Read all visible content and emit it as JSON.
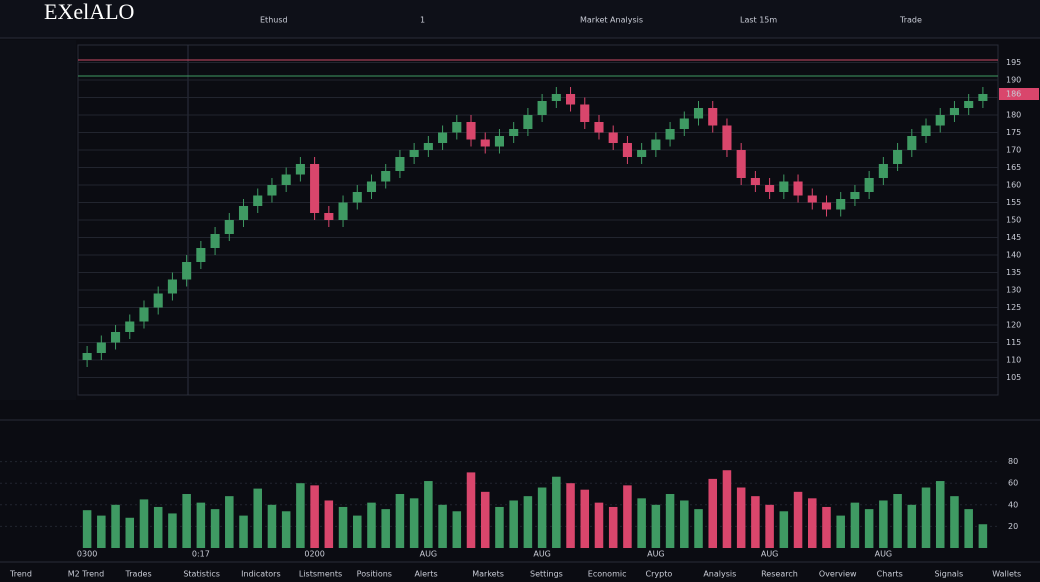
{
  "chart_data": {
    "type": "candlestick",
    "title": "EXelALO",
    "toolbar": [
      "Ethusd",
      "1",
      "Market Analysis",
      "Last 15m",
      "Trade"
    ],
    "categories": [
      "0300",
      null,
      null,
      null,
      null,
      null,
      null,
      null,
      "0:17",
      null,
      null,
      null,
      null,
      null,
      null,
      null,
      "0200",
      null,
      null,
      null,
      null,
      null,
      null,
      null,
      "AUG",
      null,
      null,
      null,
      null,
      null,
      null,
      null,
      "AUG",
      null,
      null,
      null,
      null,
      null,
      null,
      null,
      "AUG",
      null,
      null,
      null,
      null,
      null,
      null,
      null,
      "AUG",
      null,
      null,
      null,
      null,
      null,
      null,
      null,
      "AUG",
      null,
      null,
      null,
      null,
      null,
      null,
      null
    ],
    "open": [
      110,
      112,
      115,
      118,
      121,
      125,
      129,
      133,
      138,
      142,
      146,
      150,
      154,
      157,
      160,
      163,
      166,
      152,
      150,
      155,
      158,
      161,
      164,
      168,
      170,
      172,
      175,
      178,
      173,
      171,
      174,
      176,
      180,
      184,
      186,
      183,
      178,
      175,
      172,
      168,
      170,
      173,
      176,
      179,
      182,
      177,
      170,
      162,
      160,
      158,
      161,
      157,
      155,
      153,
      156,
      158,
      162,
      166,
      170,
      174,
      177,
      180,
      182,
      184
    ],
    "high": [
      114,
      117,
      120,
      123,
      127,
      131,
      135,
      140,
      144,
      148,
      152,
      156,
      159,
      162,
      165,
      168,
      168,
      154,
      157,
      160,
      163,
      166,
      170,
      172,
      174,
      177,
      180,
      180,
      175,
      176,
      178,
      182,
      186,
      188,
      188,
      185,
      180,
      177,
      174,
      172,
      175,
      178,
      181,
      184,
      184,
      179,
      172,
      164,
      162,
      163,
      163,
      159,
      157,
      158,
      160,
      164,
      168,
      172,
      176,
      179,
      182,
      184,
      186,
      188
    ],
    "low": [
      108,
      110,
      113,
      116,
      119,
      123,
      127,
      131,
      136,
      140,
      144,
      148,
      152,
      155,
      158,
      161,
      150,
      148,
      148,
      153,
      156,
      159,
      162,
      166,
      168,
      170,
      173,
      171,
      169,
      169,
      172,
      174,
      178,
      182,
      181,
      176,
      173,
      170,
      166,
      166,
      168,
      171,
      174,
      177,
      175,
      168,
      160,
      158,
      156,
      156,
      155,
      153,
      151,
      151,
      154,
      156,
      160,
      164,
      168,
      172,
      175,
      178,
      180,
      182
    ],
    "close": [
      112,
      115,
      118,
      121,
      125,
      129,
      133,
      138,
      142,
      146,
      150,
      154,
      157,
      160,
      163,
      166,
      152,
      150,
      155,
      158,
      161,
      164,
      168,
      170,
      172,
      175,
      178,
      173,
      171,
      174,
      176,
      180,
      184,
      186,
      183,
      178,
      175,
      172,
      168,
      170,
      173,
      176,
      179,
      182,
      177,
      170,
      162,
      160,
      158,
      161,
      157,
      155,
      153,
      156,
      158,
      162,
      166,
      170,
      174,
      177,
      180,
      182,
      184,
      186
    ],
    "volume": [
      35,
      30,
      40,
      28,
      45,
      38,
      32,
      50,
      42,
      36,
      48,
      30,
      55,
      40,
      34,
      60,
      58,
      44,
      38,
      30,
      42,
      36,
      50,
      46,
      62,
      40,
      34,
      70,
      52,
      38,
      44,
      48,
      56,
      66,
      60,
      54,
      42,
      38,
      58,
      46,
      40,
      50,
      44,
      36,
      64,
      72,
      56,
      48,
      40,
      34,
      52,
      46,
      38,
      30,
      42,
      36,
      44,
      50,
      40,
      56,
      62,
      48,
      36,
      22
    ],
    "up_color": "#3f9a63",
    "down_color": "#d9466c",
    "ylim": [
      100,
      200
    ],
    "yticks": [
      105,
      110,
      115,
      120,
      125,
      130,
      135,
      140,
      145,
      150,
      155,
      160,
      165,
      170,
      175,
      180,
      185,
      190,
      195
    ],
    "volume_ylim": [
      0,
      100
    ],
    "volume_yticks": [
      20,
      40,
      60,
      80
    ],
    "grid": true
  },
  "nav": [
    "Trend",
    "M2 Trend",
    "Trades",
    "Statistics",
    "Indicators",
    "Listsments",
    "Positions",
    "Alerts",
    "Markets",
    "Settings",
    "Economic",
    "Crypto",
    "Analysis",
    "Research",
    "Overview",
    "Charts",
    "Signals",
    "Wallets"
  ]
}
